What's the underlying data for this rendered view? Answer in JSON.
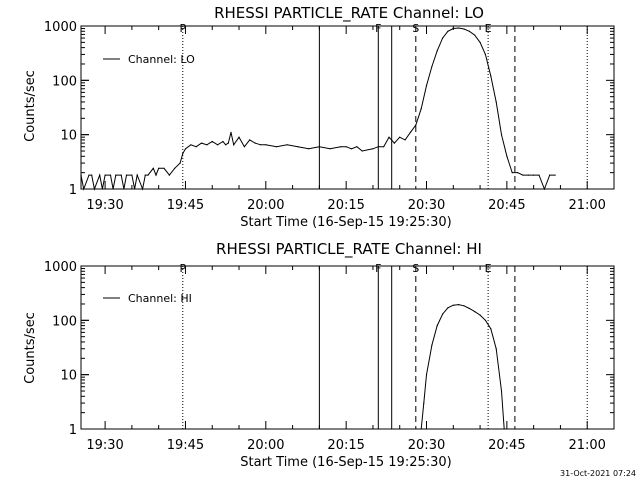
{
  "timestamp": "31-Oct-2021 07:24",
  "chart_data": [
    {
      "type": "line",
      "title": "RHESSI PARTICLE_RATE Channel: LO",
      "xlabel": "Start Time (16-Sep-15 19:25:30)",
      "ylabel": "Counts/sec",
      "yscale": "log",
      "ylim": [
        1,
        1000
      ],
      "xlim": [
        "19:25:30",
        "21:05:00"
      ],
      "x_ticks": [
        "19:30",
        "19:45",
        "20:00",
        "20:15",
        "20:30",
        "20:45",
        "21:00"
      ],
      "y_ticks": [
        "1",
        "10",
        "100",
        "1000"
      ],
      "legend": {
        "label": "Channel: LO",
        "position": "top-left"
      },
      "series": [
        {
          "name": "Channel: LO",
          "x": [
            "19:25:30",
            "19:26:00",
            "19:27:00",
            "19:27:30",
            "19:28:00",
            "19:29:00",
            "19:29:30",
            "19:30:00",
            "19:31:00",
            "19:31:30",
            "19:32:00",
            "19:33:00",
            "19:33:30",
            "19:34:00",
            "19:35:00",
            "19:35:30",
            "19:36:00",
            "19:37:00",
            "19:37:30",
            "19:38:00",
            "19:39:00",
            "19:39:30",
            "19:40:00",
            "19:41:00",
            "19:42:00",
            "19:43:00",
            "19:44:00",
            "19:44:30",
            "19:45:00",
            "19:46:00",
            "19:47:00",
            "19:48:00",
            "19:49:00",
            "19:50:00",
            "19:51:00",
            "19:52:00",
            "19:52:30",
            "19:53:00",
            "19:53:30",
            "19:54:00",
            "19:55:00",
            "19:56:00",
            "19:57:00",
            "19:58:00",
            "19:59:00",
            "20:00:00",
            "20:02:00",
            "20:04:00",
            "20:06:00",
            "20:08:00",
            "20:10:00",
            "20:12:00",
            "20:14:00",
            "20:15:00",
            "20:16:00",
            "20:17:00",
            "20:18:00",
            "20:20:00",
            "20:21:00",
            "20:22:00",
            "20:23:00",
            "20:24:00",
            "20:25:00",
            "20:26:00",
            "20:27:00",
            "20:28:00",
            "20:29:00",
            "20:30:00",
            "20:31:00",
            "20:32:00",
            "20:33:00",
            "20:34:00",
            "20:35:00",
            "20:36:00",
            "20:37:00",
            "20:38:00",
            "20:39:00",
            "20:40:00",
            "20:41:00",
            "20:42:00",
            "20:43:00",
            "20:44:00",
            "20:45:00",
            "20:46:00",
            "20:47:00",
            "20:48:00",
            "20:49:00",
            "20:50:00",
            "20:51:00",
            "20:52:00",
            "20:53:00",
            "20:54:00"
          ],
          "y": [
            1.8,
            1,
            1.8,
            1.8,
            1,
            1.8,
            1,
            1.8,
            1.8,
            1,
            1.8,
            1.8,
            1,
            1.8,
            1.8,
            1,
            1.8,
            1,
            1.8,
            1.8,
            2.4,
            1.8,
            2.4,
            2.4,
            1.8,
            2.4,
            3,
            4.5,
            5.5,
            6.5,
            6,
            7,
            6.5,
            7.5,
            6.5,
            7.5,
            6.5,
            7,
            11,
            6.5,
            9,
            6,
            8,
            7,
            6.5,
            6.5,
            6,
            6.5,
            6,
            5.5,
            6,
            5.5,
            6,
            6,
            5.5,
            6,
            5,
            5.5,
            6,
            6,
            9,
            7,
            9,
            8,
            11,
            15,
            30,
            80,
            180,
            350,
            600,
            800,
            900,
            920,
            880,
            800,
            680,
            500,
            300,
            120,
            40,
            10,
            4,
            2,
            2,
            1.8,
            1.8,
            1.8,
            1.8,
            1,
            1.8,
            1.8
          ]
        }
      ],
      "event_markers": [
        {
          "label": "P",
          "time": "19:44:30",
          "style": "dotted"
        },
        {
          "label": "",
          "time": "20:10:00",
          "style": "solid"
        },
        {
          "label": "F",
          "time": "20:21:00",
          "style": "solid"
        },
        {
          "label": "",
          "time": "20:23:30",
          "style": "solid"
        },
        {
          "label": "S",
          "time": "20:28:00",
          "style": "dashed"
        },
        {
          "label": "E",
          "time": "20:41:30",
          "style": "dotted"
        },
        {
          "label": "",
          "time": "20:46:30",
          "style": "dashed"
        },
        {
          "label": "",
          "time": "21:00:00",
          "style": "dotted"
        }
      ]
    },
    {
      "type": "line",
      "title": "RHESSI PARTICLE_RATE Channel: HI",
      "xlabel": "Start Time (16-Sep-15 19:25:30)",
      "ylabel": "Counts/sec",
      "yscale": "log",
      "ylim": [
        1,
        1000
      ],
      "xlim": [
        "19:25:30",
        "21:05:00"
      ],
      "x_ticks": [
        "19:30",
        "19:45",
        "20:00",
        "20:15",
        "20:30",
        "20:45",
        "21:00"
      ],
      "y_ticks": [
        "1",
        "10",
        "100",
        "1000"
      ],
      "legend": {
        "label": "Channel: HI",
        "position": "top-left"
      },
      "series": [
        {
          "name": "Channel: HI",
          "x": [
            "20:29:00",
            "20:29:30",
            "20:30:00",
            "20:31:00",
            "20:32:00",
            "20:33:00",
            "20:34:00",
            "20:35:00",
            "20:36:00",
            "20:37:00",
            "20:38:00",
            "20:39:00",
            "20:40:00",
            "20:41:00",
            "20:42:00",
            "20:43:00",
            "20:44:00",
            "20:44:30"
          ],
          "y": [
            1,
            3,
            10,
            35,
            80,
            130,
            170,
            190,
            195,
            185,
            165,
            145,
            125,
            100,
            70,
            30,
            5,
            1
          ]
        }
      ],
      "event_markers": [
        {
          "label": "P",
          "time": "19:44:30",
          "style": "dotted"
        },
        {
          "label": "",
          "time": "20:10:00",
          "style": "solid"
        },
        {
          "label": "F",
          "time": "20:21:00",
          "style": "solid"
        },
        {
          "label": "",
          "time": "20:23:30",
          "style": "solid"
        },
        {
          "label": "S",
          "time": "20:28:00",
          "style": "dashed"
        },
        {
          "label": "E",
          "time": "20:41:30",
          "style": "dotted"
        },
        {
          "label": "",
          "time": "20:46:30",
          "style": "dashed"
        },
        {
          "label": "",
          "time": "21:00:00",
          "style": "dotted"
        }
      ]
    }
  ]
}
